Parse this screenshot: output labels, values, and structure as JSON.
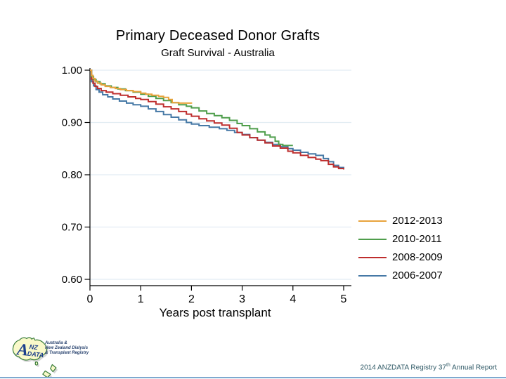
{
  "slide": {
    "background": "#ffffff",
    "bottom_border_color": "#7ea9cf"
  },
  "chart_data": {
    "type": "line",
    "step": true,
    "title": "Primary Deceased Donor Grafts",
    "subtitle": "Graft Survival - Australia",
    "xlabel": "Years post transplant",
    "ylabel": "",
    "xlim": [
      0,
      5
    ],
    "ylim": [
      0.6,
      1.0
    ],
    "xticks": [
      0,
      1,
      2,
      3,
      4,
      5
    ],
    "yticks": [
      1.0,
      0.9,
      0.8,
      0.7,
      0.6
    ],
    "grid": true,
    "gridline_color": "#e2ecf3",
    "axis_color": "#000000",
    "legend_position": "right-bottom",
    "series": [
      {
        "name": "2012-2013",
        "color": "#e8a33c",
        "points": [
          [
            0,
            1.0
          ],
          [
            0.03,
            0.99
          ],
          [
            0.06,
            0.984
          ],
          [
            0.1,
            0.979
          ],
          [
            0.15,
            0.975
          ],
          [
            0.22,
            0.972
          ],
          [
            0.3,
            0.969
          ],
          [
            0.4,
            0.967
          ],
          [
            0.5,
            0.965
          ],
          [
            0.6,
            0.963
          ],
          [
            0.72,
            0.961
          ],
          [
            0.85,
            0.959
          ],
          [
            1.0,
            0.956
          ],
          [
            1.1,
            0.954
          ],
          [
            1.22,
            0.952
          ],
          [
            1.35,
            0.95
          ],
          [
            1.45,
            0.948
          ],
          [
            1.55,
            0.944
          ],
          [
            1.62,
            0.938
          ],
          [
            1.75,
            0.937
          ],
          [
            2.0,
            0.936
          ]
        ]
      },
      {
        "name": "2010-2011",
        "color": "#4f9e4c",
        "points": [
          [
            0,
            1.0
          ],
          [
            0.03,
            0.988
          ],
          [
            0.07,
            0.982
          ],
          [
            0.12,
            0.978
          ],
          [
            0.2,
            0.974
          ],
          [
            0.3,
            0.97
          ],
          [
            0.42,
            0.967
          ],
          [
            0.55,
            0.964
          ],
          [
            0.7,
            0.961
          ],
          [
            0.85,
            0.958
          ],
          [
            1.0,
            0.954
          ],
          [
            1.15,
            0.95
          ],
          [
            1.3,
            0.946
          ],
          [
            1.45,
            0.942
          ],
          [
            1.6,
            0.938
          ],
          [
            1.75,
            0.934
          ],
          [
            1.9,
            0.931
          ],
          [
            2.0,
            0.928
          ],
          [
            2.15,
            0.922
          ],
          [
            2.3,
            0.917
          ],
          [
            2.45,
            0.913
          ],
          [
            2.6,
            0.909
          ],
          [
            2.75,
            0.904
          ],
          [
            2.9,
            0.898
          ],
          [
            3.0,
            0.894
          ],
          [
            3.15,
            0.888
          ],
          [
            3.3,
            0.882
          ],
          [
            3.45,
            0.876
          ],
          [
            3.55,
            0.872
          ],
          [
            3.65,
            0.864
          ],
          [
            3.72,
            0.858
          ],
          [
            3.8,
            0.856
          ],
          [
            4.0,
            0.856
          ]
        ]
      },
      {
        "name": "2008-2009",
        "color": "#be2d2d",
        "points": [
          [
            0,
            1.0
          ],
          [
            0.03,
            0.983
          ],
          [
            0.06,
            0.975
          ],
          [
            0.1,
            0.969
          ],
          [
            0.15,
            0.965
          ],
          [
            0.22,
            0.961
          ],
          [
            0.32,
            0.958
          ],
          [
            0.45,
            0.955
          ],
          [
            0.6,
            0.952
          ],
          [
            0.75,
            0.949
          ],
          [
            0.9,
            0.946
          ],
          [
            1.0,
            0.944
          ],
          [
            1.15,
            0.94
          ],
          [
            1.3,
            0.935
          ],
          [
            1.45,
            0.93
          ],
          [
            1.6,
            0.926
          ],
          [
            1.75,
            0.921
          ],
          [
            1.9,
            0.916
          ],
          [
            2.0,
            0.912
          ],
          [
            2.15,
            0.907
          ],
          [
            2.3,
            0.903
          ],
          [
            2.45,
            0.899
          ],
          [
            2.6,
            0.895
          ],
          [
            2.75,
            0.889
          ],
          [
            2.9,
            0.881
          ],
          [
            3.0,
            0.876
          ],
          [
            3.15,
            0.871
          ],
          [
            3.3,
            0.866
          ],
          [
            3.45,
            0.861
          ],
          [
            3.6,
            0.855
          ],
          [
            3.75,
            0.851
          ],
          [
            3.9,
            0.845
          ],
          [
            4.0,
            0.842
          ],
          [
            4.15,
            0.837
          ],
          [
            4.3,
            0.833
          ],
          [
            4.45,
            0.83
          ],
          [
            4.55,
            0.827
          ],
          [
            4.7,
            0.82
          ],
          [
            4.8,
            0.815
          ],
          [
            4.9,
            0.812
          ],
          [
            5.0,
            0.81
          ]
        ]
      },
      {
        "name": "2006-2007",
        "color": "#4679a6",
        "points": [
          [
            0,
            1.0
          ],
          [
            0.03,
            0.978
          ],
          [
            0.07,
            0.97
          ],
          [
            0.12,
            0.963
          ],
          [
            0.18,
            0.958
          ],
          [
            0.25,
            0.953
          ],
          [
            0.35,
            0.949
          ],
          [
            0.45,
            0.945
          ],
          [
            0.58,
            0.941
          ],
          [
            0.72,
            0.937
          ],
          [
            0.85,
            0.934
          ],
          [
            1.0,
            0.931
          ],
          [
            1.15,
            0.926
          ],
          [
            1.3,
            0.921
          ],
          [
            1.45,
            0.915
          ],
          [
            1.6,
            0.91
          ],
          [
            1.75,
            0.905
          ],
          [
            1.9,
            0.9
          ],
          [
            2.0,
            0.897
          ],
          [
            2.15,
            0.894
          ],
          [
            2.35,
            0.891
          ],
          [
            2.55,
            0.888
          ],
          [
            2.7,
            0.885
          ],
          [
            2.85,
            0.881
          ],
          [
            3.0,
            0.877
          ],
          [
            3.15,
            0.871
          ],
          [
            3.3,
            0.866
          ],
          [
            3.45,
            0.862
          ],
          [
            3.6,
            0.858
          ],
          [
            3.75,
            0.854
          ],
          [
            3.9,
            0.85
          ],
          [
            4.0,
            0.847
          ],
          [
            4.15,
            0.843
          ],
          [
            4.3,
            0.84
          ],
          [
            4.45,
            0.837
          ],
          [
            4.6,
            0.831
          ],
          [
            4.7,
            0.825
          ],
          [
            4.8,
            0.818
          ],
          [
            4.9,
            0.814
          ],
          [
            5.0,
            0.812
          ]
        ]
      }
    ]
  },
  "footer": {
    "report_prefix": "2014 ANZDATA Registry 37",
    "report_sup": "th",
    "report_suffix": " Annual Report",
    "logo": {
      "letter_a": "A",
      "letters_nz": "NZ",
      "letters_data": "DATA",
      "caption_lines": [
        "Australia &",
        "New Zealand Dialysis",
        "& Transplant Registry"
      ]
    }
  }
}
